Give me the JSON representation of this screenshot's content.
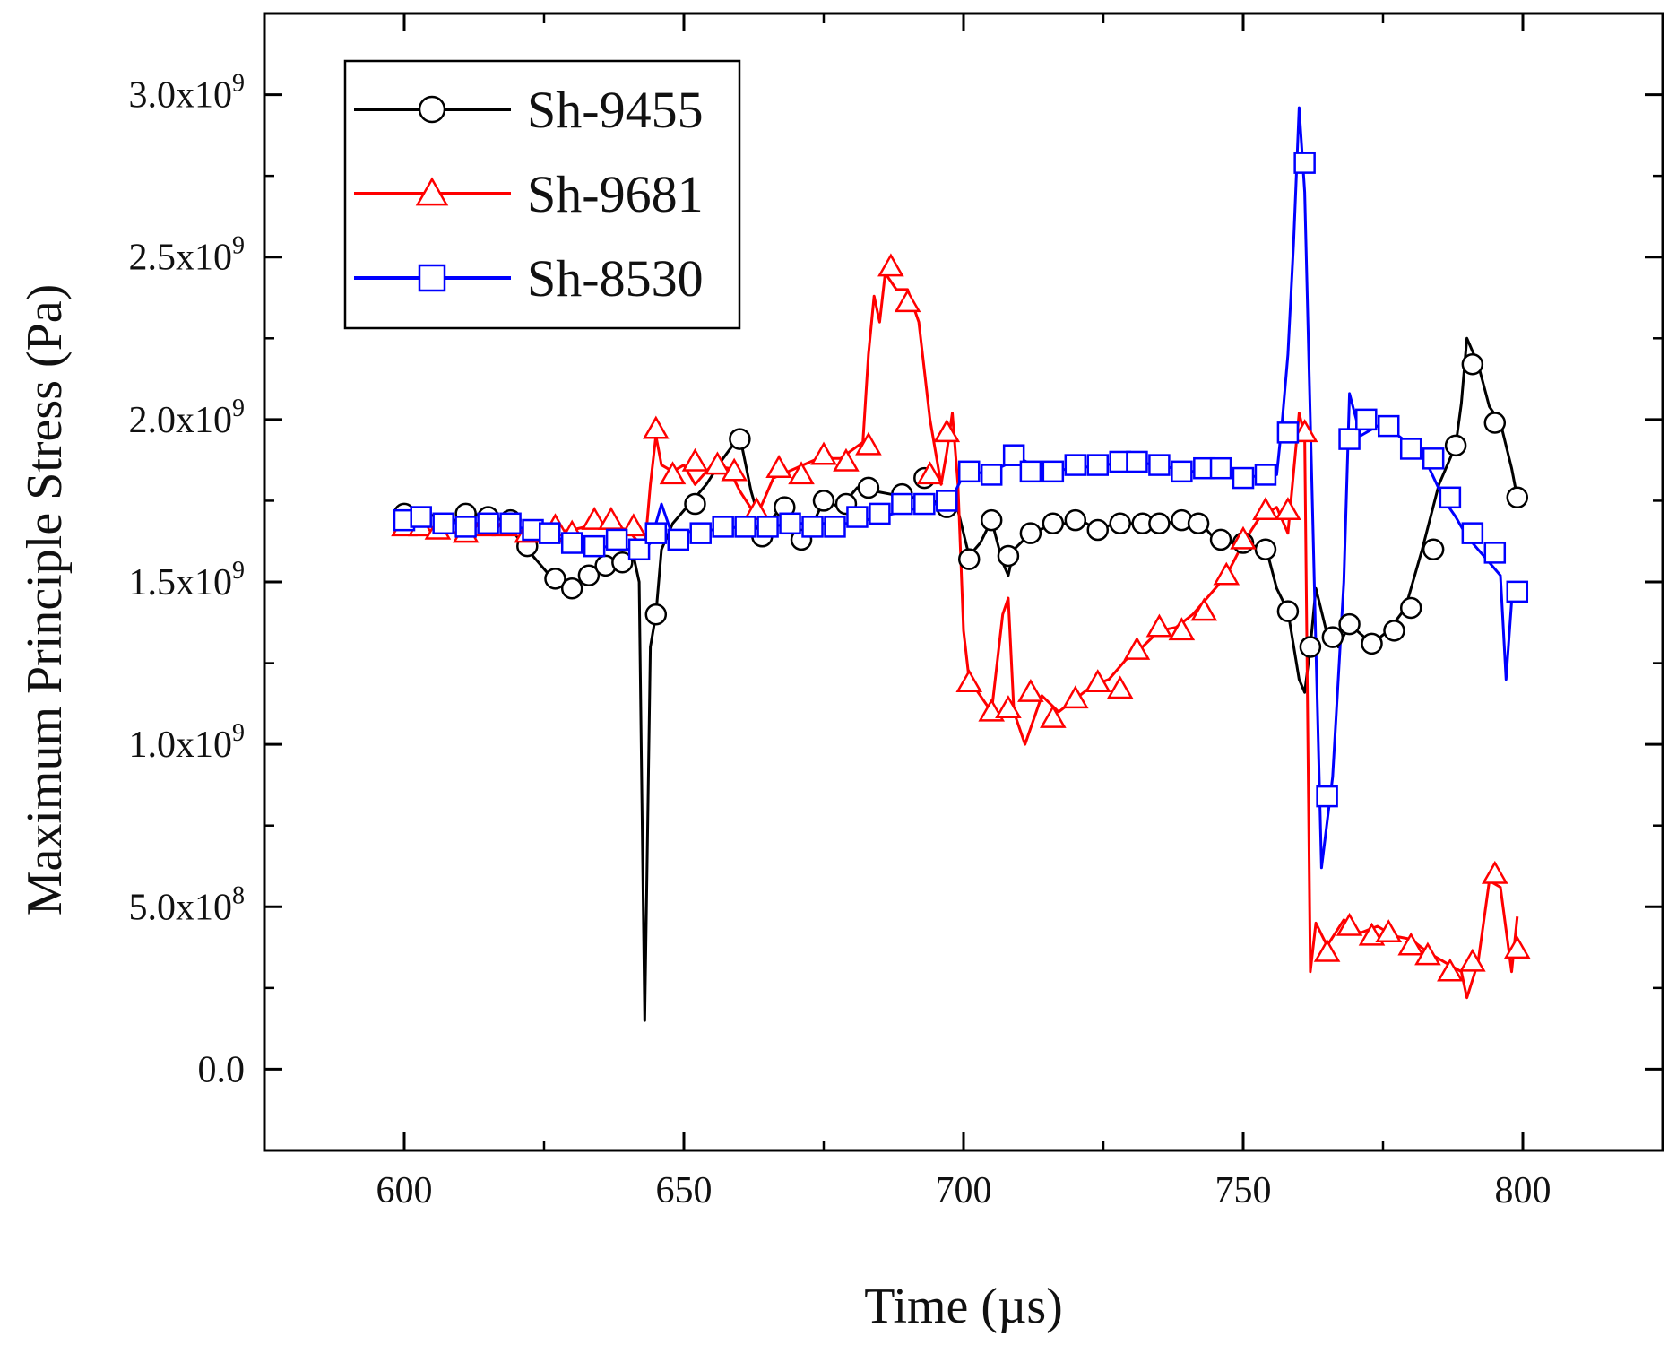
{
  "chart_data": {
    "type": "line",
    "title": "",
    "xlabel": "Time (µs)",
    "ylabel": "Maximum Principle Stress (Pa)",
    "xlim": [
      575,
      825
    ],
    "ylim": [
      -250000000,
      3250000000
    ],
    "x_ticks": [
      600,
      650,
      700,
      750,
      800
    ],
    "x_tick_labels": [
      "600",
      "650",
      "700",
      "750",
      "800"
    ],
    "y_ticks": [
      0,
      500000000,
      1000000000,
      1500000000,
      2000000000,
      2500000000,
      3000000000
    ],
    "y_tick_labels": [
      {
        "mantissa": "0.0",
        "exp": ""
      },
      {
        "mantissa": "5.0x10",
        "exp": "8"
      },
      {
        "mantissa": "1.0x10",
        "exp": "9"
      },
      {
        "mantissa": "1.5x10",
        "exp": "9"
      },
      {
        "mantissa": "2.0x10",
        "exp": "9"
      },
      {
        "mantissa": "2.5x10",
        "exp": "9"
      },
      {
        "mantissa": "3.0x10",
        "exp": "9"
      }
    ],
    "grid": false,
    "legend_position": "top-left",
    "series": [
      {
        "name": "Sh-9455",
        "color": "#000000",
        "marker": "circle",
        "x": [
          600,
          603,
          606,
          609,
          612,
          615,
          618,
          621,
          624,
          627,
          630,
          633,
          636,
          639,
          641,
          642,
          643,
          644,
          645,
          646,
          648,
          651,
          654,
          657,
          660,
          662,
          664,
          666,
          668,
          670,
          672,
          675,
          678,
          681,
          684,
          687,
          690,
          693,
          696,
          699,
          701,
          703,
          705,
          707,
          708,
          709,
          712,
          715,
          718,
          721,
          724,
          727,
          730,
          733,
          736,
          739,
          742,
          745,
          748,
          751,
          754,
          756,
          758,
          760,
          761,
          762,
          763,
          765,
          767,
          769,
          771,
          773,
          776,
          779,
          782,
          785,
          788,
          789,
          790,
          792,
          794,
          796,
          798,
          799
        ],
        "y": [
          1710000000,
          1690000000,
          1680000000,
          1690000000,
          1710000000,
          1700000000,
          1690000000,
          1620000000,
          1560000000,
          1500000000,
          1480000000,
          1510000000,
          1540000000,
          1560000000,
          1580000000,
          1500000000,
          150000000,
          1300000000,
          1400000000,
          1600000000,
          1680000000,
          1740000000,
          1800000000,
          1880000000,
          1950000000,
          1780000000,
          1660000000,
          1700000000,
          1740000000,
          1650000000,
          1640000000,
          1750000000,
          1730000000,
          1790000000,
          1780000000,
          1770000000,
          1760000000,
          1760000000,
          1740000000,
          1720000000,
          1580000000,
          1620000000,
          1690000000,
          1560000000,
          1520000000,
          1600000000,
          1650000000,
          1670000000,
          1680000000,
          1690000000,
          1660000000,
          1680000000,
          1680000000,
          1690000000,
          1680000000,
          1690000000,
          1690000000,
          1630000000,
          1620000000,
          1610000000,
          1610000000,
          1480000000,
          1410000000,
          1200000000,
          1160000000,
          1300000000,
          1480000000,
          1340000000,
          1300000000,
          1370000000,
          1340000000,
          1310000000,
          1350000000,
          1420000000,
          1600000000,
          1800000000,
          1920000000,
          2050000000,
          2250000000,
          2170000000,
          2040000000,
          1990000000,
          1850000000,
          1760000000
        ],
        "marker_x": [
          600,
          604,
          611,
          615,
          619,
          622,
          627,
          630,
          633,
          636,
          639,
          645,
          652,
          660,
          664,
          668,
          671,
          675,
          679,
          683,
          689,
          693,
          697,
          701,
          705,
          708,
          712,
          716,
          720,
          724,
          728,
          732,
          735,
          739,
          742,
          746,
          750,
          754,
          758,
          762,
          766,
          769,
          773,
          777,
          780,
          784,
          788,
          791,
          795,
          799
        ],
        "marker_y": [
          1710000000,
          1680000000,
          1710000000,
          1700000000,
          1690000000,
          1610000000,
          1510000000,
          1480000000,
          1520000000,
          1550000000,
          1560000000,
          1400000000,
          1740000000,
          1940000000,
          1640000000,
          1730000000,
          1630000000,
          1750000000,
          1740000000,
          1790000000,
          1770000000,
          1820000000,
          1730000000,
          1570000000,
          1690000000,
          1580000000,
          1650000000,
          1680000000,
          1690000000,
          1660000000,
          1680000000,
          1680000000,
          1680000000,
          1690000000,
          1680000000,
          1630000000,
          1620000000,
          1600000000,
          1410000000,
          1300000000,
          1330000000,
          1370000000,
          1310000000,
          1350000000,
          1420000000,
          1600000000,
          1920000000,
          2170000000,
          1990000000,
          1760000000
        ]
      },
      {
        "name": "Sh-9681",
        "color": "#ff0000",
        "marker": "triangle",
        "x": [
          600,
          605,
          610,
          615,
          620,
          625,
          630,
          635,
          640,
          643,
          644,
          645,
          646,
          648,
          650,
          652,
          655,
          658,
          660,
          663,
          666,
          670,
          674,
          678,
          682,
          683,
          684,
          685,
          686,
          688,
          690,
          692,
          694,
          696,
          697,
          698,
          699,
          700,
          701,
          703,
          705,
          707,
          708,
          709,
          711,
          714,
          717,
          720,
          723,
          726,
          729,
          732,
          735,
          738,
          741,
          744,
          747,
          750,
          753,
          756,
          758,
          760,
          761,
          762,
          763,
          765,
          768,
          771,
          774,
          777,
          780,
          783,
          786,
          789,
          790,
          792,
          794,
          796,
          798,
          799
        ],
        "y": [
          1650000000,
          1660000000,
          1650000000,
          1660000000,
          1650000000,
          1650000000,
          1660000000,
          1680000000,
          1660000000,
          1600000000,
          1800000000,
          1950000000,
          1860000000,
          1840000000,
          1860000000,
          1800000000,
          1860000000,
          1850000000,
          1780000000,
          1700000000,
          1820000000,
          1850000000,
          1880000000,
          1880000000,
          1930000000,
          2200000000,
          2380000000,
          2300000000,
          2450000000,
          2400000000,
          2400000000,
          2300000000,
          2000000000,
          1800000000,
          1900000000,
          2020000000,
          1800000000,
          1350000000,
          1200000000,
          1150000000,
          1100000000,
          1400000000,
          1450000000,
          1100000000,
          1000000000,
          1150000000,
          1100000000,
          1140000000,
          1180000000,
          1200000000,
          1260000000,
          1300000000,
          1350000000,
          1360000000,
          1400000000,
          1460000000,
          1520000000,
          1620000000,
          1700000000,
          1730000000,
          1650000000,
          2020000000,
          1950000000,
          300000000,
          450000000,
          380000000,
          460000000,
          420000000,
          440000000,
          410000000,
          400000000,
          360000000,
          330000000,
          300000000,
          220000000,
          330000000,
          580000000,
          560000000,
          300000000,
          470000000
        ],
        "marker_x": [
          600,
          603,
          606,
          611,
          614,
          618,
          622,
          627,
          630,
          634,
          637,
          641,
          645,
          648,
          652,
          656,
          659,
          663,
          667,
          671,
          675,
          679,
          683,
          687,
          690,
          694,
          697,
          701,
          705,
          708,
          712,
          716,
          720,
          724,
          728,
          731,
          735,
          739,
          743,
          747,
          750,
          754,
          758,
          761,
          765,
          769,
          773,
          776,
          780,
          783,
          787,
          791,
          795,
          799
        ],
        "marker_y": [
          1670000000,
          1670000000,
          1660000000,
          1650000000,
          1670000000,
          1670000000,
          1650000000,
          1670000000,
          1650000000,
          1690000000,
          1690000000,
          1670000000,
          1970000000,
          1830000000,
          1870000000,
          1860000000,
          1840000000,
          1720000000,
          1850000000,
          1830000000,
          1890000000,
          1870000000,
          1920000000,
          2470000000,
          2360000000,
          1830000000,
          1960000000,
          1190000000,
          1100000000,
          1110000000,
          1160000000,
          1080000000,
          1140000000,
          1190000000,
          1170000000,
          1290000000,
          1360000000,
          1350000000,
          1410000000,
          1520000000,
          1630000000,
          1720000000,
          1720000000,
          1960000000,
          360000000,
          440000000,
          410000000,
          420000000,
          380000000,
          350000000,
          300000000,
          330000000,
          600000000,
          370000000
        ]
      },
      {
        "name": "Sh-8530",
        "color": "#0000ff",
        "marker": "square",
        "x": [
          600,
          605,
          610,
          615,
          620,
          625,
          630,
          635,
          640,
          643,
          644,
          645,
          646,
          648,
          652,
          656,
          660,
          665,
          670,
          675,
          680,
          685,
          690,
          695,
          698,
          700,
          705,
          710,
          715,
          720,
          725,
          730,
          735,
          740,
          745,
          750,
          754,
          756,
          757,
          758,
          759,
          760,
          761,
          762,
          763,
          764,
          766,
          768,
          769,
          771,
          774,
          777,
          780,
          783,
          786,
          788,
          790,
          792,
          794,
          796,
          797,
          798,
          799
        ],
        "y": [
          1690000000,
          1690000000,
          1680000000,
          1680000000,
          1670000000,
          1650000000,
          1620000000,
          1610000000,
          1600000000,
          1600000000,
          1620000000,
          1680000000,
          1740000000,
          1640000000,
          1660000000,
          1660000000,
          1670000000,
          1670000000,
          1680000000,
          1680000000,
          1680000000,
          1700000000,
          1720000000,
          1740000000,
          1760000000,
          1830000000,
          1840000000,
          1880000000,
          1840000000,
          1850000000,
          1860000000,
          1870000000,
          1860000000,
          1840000000,
          1840000000,
          1820000000,
          1830000000,
          1830000000,
          2000000000,
          2200000000,
          2540000000,
          2960000000,
          2700000000,
          2000000000,
          1300000000,
          620000000,
          900000000,
          1500000000,
          2080000000,
          1950000000,
          1980000000,
          1960000000,
          1920000000,
          1860000000,
          1750000000,
          1700000000,
          1640000000,
          1600000000,
          1560000000,
          1520000000,
          1200000000,
          1440000000,
          1460000000
        ],
        "marker_x": [
          600,
          603,
          607,
          611,
          615,
          619,
          623,
          626,
          630,
          634,
          638,
          642,
          645,
          649,
          653,
          657,
          661,
          665,
          669,
          673,
          677,
          681,
          685,
          689,
          693,
          697,
          701,
          705,
          709,
          712,
          716,
          720,
          724,
          728,
          731,
          735,
          739,
          743,
          746,
          750,
          754,
          758,
          761,
          765,
          769,
          772,
          776,
          780,
          784,
          787,
          791,
          795,
          799
        ],
        "marker_y": [
          1690000000,
          1700000000,
          1680000000,
          1670000000,
          1680000000,
          1680000000,
          1660000000,
          1650000000,
          1620000000,
          1610000000,
          1630000000,
          1600000000,
          1650000000,
          1630000000,
          1650000000,
          1670000000,
          1670000000,
          1670000000,
          1680000000,
          1670000000,
          1670000000,
          1700000000,
          1710000000,
          1740000000,
          1740000000,
          1750000000,
          1840000000,
          1830000000,
          1890000000,
          1840000000,
          1840000000,
          1860000000,
          1860000000,
          1870000000,
          1870000000,
          1860000000,
          1840000000,
          1850000000,
          1850000000,
          1820000000,
          1830000000,
          1960000000,
          2790000000,
          840000000,
          1940000000,
          2000000000,
          1980000000,
          1910000000,
          1880000000,
          1760000000,
          1650000000,
          1590000000,
          1470000000
        ]
      }
    ]
  }
}
